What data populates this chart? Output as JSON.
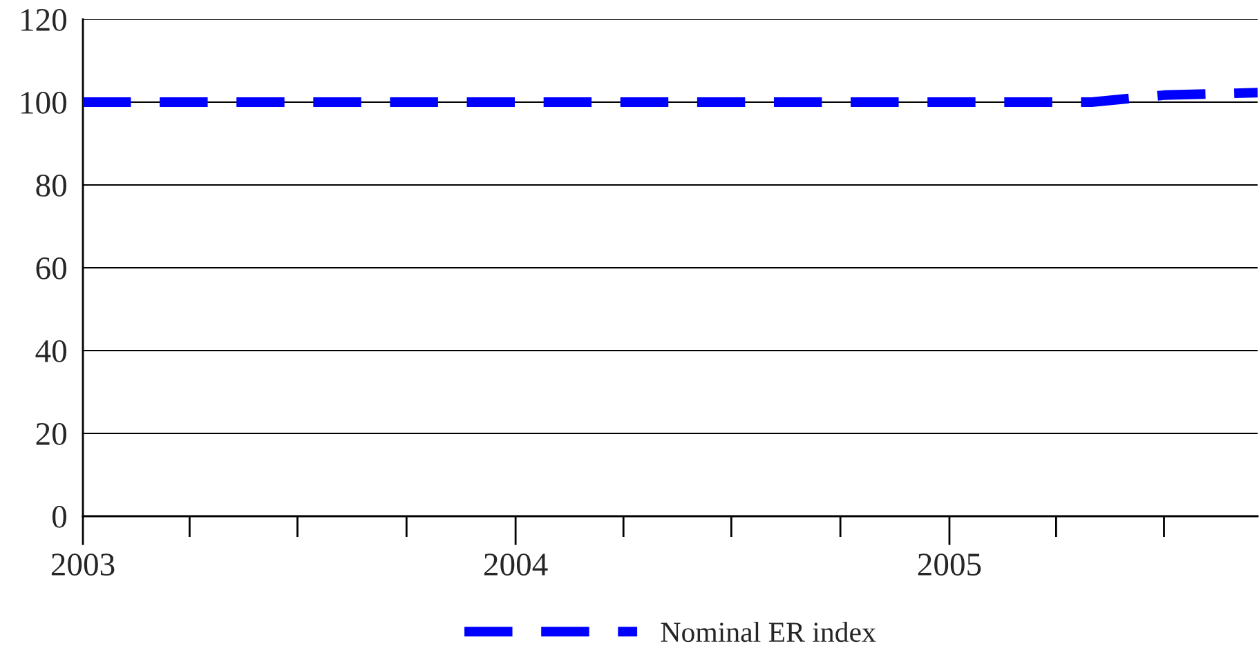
{
  "chart_data": {
    "type": "line",
    "x": [
      "2003-01",
      "2003-04",
      "2003-07",
      "2003-10",
      "2004-01",
      "2004-04",
      "2004-07",
      "2004-10",
      "2005-01",
      "2005-04",
      "2005-05",
      "2005-07",
      "2005-09-18"
    ],
    "series": [
      {
        "name": "Nominal ER index",
        "color": "#0000ff",
        "values": [
          100,
          100,
          100,
          100,
          100,
          100,
          100,
          100,
          100,
          100,
          100,
          101.7,
          102.3
        ]
      }
    ],
    "xlim": [
      "2003-01",
      "2005-09-18"
    ],
    "xticks": [
      {
        "value": "2003-01",
        "label": "2003"
      },
      {
        "value": "2003-04",
        "label": null
      },
      {
        "value": "2003-07",
        "label": null
      },
      {
        "value": "2003-10",
        "label": null
      },
      {
        "value": "2004-01",
        "label": "2004"
      },
      {
        "value": "2004-04",
        "label": null
      },
      {
        "value": "2004-07",
        "label": null
      },
      {
        "value": "2004-10",
        "label": null
      },
      {
        "value": "2005-01",
        "label": "2005"
      },
      {
        "value": "2005-04",
        "label": null
      },
      {
        "value": "2005-07",
        "label": null
      }
    ],
    "ylim": [
      0,
      120
    ],
    "yticks": [
      0,
      20,
      40,
      60,
      80,
      100,
      120
    ],
    "grid": "y",
    "legend": "bottom",
    "line_style": "dashed",
    "marker": "none"
  }
}
